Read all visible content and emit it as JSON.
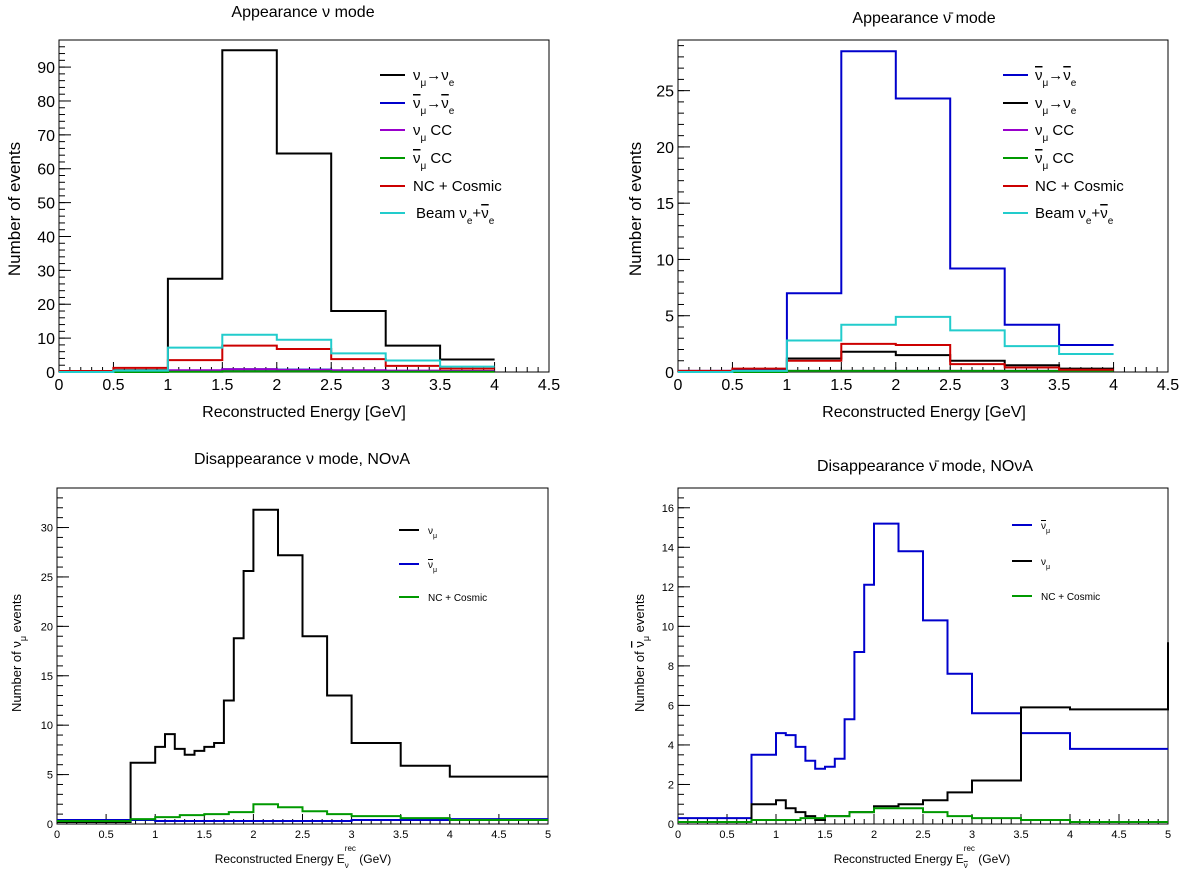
{
  "chart_data": [
    {
      "type": "line",
      "step": true,
      "title": "Appearance ν mode",
      "xlabel": "Reconstructed Energy [GeV]",
      "ylabel": "Number of events",
      "xlim": [
        0,
        4.5
      ],
      "ylim": [
        0,
        98
      ],
      "xticks": [
        0,
        0.5,
        1,
        1.5,
        2,
        2.5,
        3,
        3.5,
        4,
        4.5
      ],
      "yticks": [
        0,
        10,
        20,
        30,
        40,
        50,
        60,
        70,
        80,
        90
      ],
      "legend_position": "top-right",
      "series": [
        {
          "name": "νμ→νe",
          "color": "#000000",
          "edges": [
            0,
            0.5,
            1,
            1.5,
            2,
            2.5,
            3,
            3.5,
            4
          ],
          "values": [
            0.3,
            0.5,
            27.5,
            95,
            64.5,
            18,
            7.8,
            3.7
          ]
        },
        {
          "name": "ν̄μ→ν̄e",
          "color": "#0000cc",
          "edges": [
            0,
            0.5,
            1,
            1.5,
            2,
            2.5,
            3,
            3.5,
            4
          ],
          "values": [
            0,
            0.1,
            0.4,
            0.8,
            0.7,
            0.4,
            0.3,
            0.2
          ]
        },
        {
          "name": "νμ CC",
          "color": "#9900cc",
          "edges": [
            0,
            0.5,
            1,
            1.5,
            2,
            2.5,
            3,
            3.5,
            4
          ],
          "values": [
            0,
            0.1,
            0.5,
            0.8,
            0.6,
            0.5,
            0.4,
            0.3
          ]
        },
        {
          "name": "ν̄μ CC",
          "color": "#009900",
          "edges": [
            0,
            0.5,
            1,
            1.5,
            2,
            2.5,
            3,
            3.5,
            4
          ],
          "values": [
            0,
            0,
            0.1,
            0.2,
            0.2,
            0.1,
            0.1,
            0.1
          ]
        },
        {
          "name": "NC + Cosmic",
          "color": "#cc0000",
          "edges": [
            0,
            0.5,
            1,
            1.5,
            2,
            2.5,
            3,
            3.5,
            4
          ],
          "values": [
            0.3,
            1.2,
            3.5,
            7.8,
            6.8,
            3.8,
            1.8,
            1.0
          ]
        },
        {
          "name": "Beam νe+ν̄e",
          "color": "#22cccc",
          "edges": [
            0,
            0.5,
            1,
            1.5,
            2,
            2.5,
            3,
            3.5,
            4
          ],
          "values": [
            0,
            0.4,
            7.2,
            11,
            9.5,
            5.5,
            3.4,
            1.6
          ]
        }
      ]
    },
    {
      "type": "line",
      "step": true,
      "title": "Appearance ν̄ mode",
      "xlabel": "Reconstructed Energy [GeV]",
      "ylabel": "Number of events",
      "xlim": [
        0,
        4.5
      ],
      "ylim": [
        0,
        29.5
      ],
      "xticks": [
        0,
        0.5,
        1,
        1.5,
        2,
        2.5,
        3,
        3.5,
        4,
        4.5
      ],
      "yticks": [
        0,
        5,
        10,
        15,
        20,
        25
      ],
      "legend_position": "top-right",
      "series": [
        {
          "name": "ν̄μ→ν̄e",
          "color": "#0000cc",
          "edges": [
            0,
            0.5,
            1,
            1.5,
            2,
            2.5,
            3,
            3.5,
            4
          ],
          "values": [
            0.1,
            0.2,
            7.0,
            28.5,
            24.3,
            9.2,
            4.2,
            2.4
          ]
        },
        {
          "name": "νμ→νe",
          "color": "#000000",
          "edges": [
            0,
            0.5,
            1,
            1.5,
            2,
            2.5,
            3,
            3.5,
            4
          ],
          "values": [
            0,
            0.1,
            1.2,
            1.8,
            1.5,
            1.0,
            0.6,
            0.3
          ]
        },
        {
          "name": "νμ CC",
          "color": "#9900cc",
          "edges": [
            0,
            0.5,
            1,
            1.5,
            2,
            2.5,
            3,
            3.5,
            4
          ],
          "values": [
            0,
            0,
            0.1,
            0.1,
            0.1,
            0.1,
            0.1,
            0.1
          ]
        },
        {
          "name": "ν̄μ CC",
          "color": "#009900",
          "edges": [
            0,
            0.5,
            1,
            1.5,
            2,
            2.5,
            3,
            3.5,
            4
          ],
          "values": [
            0,
            0,
            0.1,
            0.1,
            0.1,
            0.1,
            0.1,
            0.1
          ]
        },
        {
          "name": "NC + Cosmic",
          "color": "#cc0000",
          "edges": [
            0,
            0.5,
            1,
            1.5,
            2,
            2.5,
            3,
            3.5,
            4
          ],
          "values": [
            0.1,
            0.3,
            1.0,
            2.5,
            2.4,
            0.7,
            0.4,
            0.2
          ]
        },
        {
          "name": "Beam νe+ν̄e",
          "color": "#22cccc",
          "edges": [
            0,
            0.5,
            1,
            1.5,
            2,
            2.5,
            3,
            3.5,
            4
          ],
          "values": [
            0,
            0.1,
            2.8,
            4.2,
            4.9,
            3.7,
            2.3,
            1.6
          ]
        }
      ]
    },
    {
      "type": "line",
      "step": true,
      "title": "Disappearance ν mode, NOνA",
      "xlabel": "Reconstructed Energy Eνrec (GeV)",
      "ylabel": "Number of νμ events",
      "xlim": [
        0,
        5
      ],
      "ylim": [
        0,
        34
      ],
      "xticks": [
        0,
        0.5,
        1,
        1.5,
        2,
        2.5,
        3,
        3.5,
        4,
        4.5,
        5
      ],
      "yticks": [
        0,
        5,
        10,
        15,
        20,
        25,
        30
      ],
      "legend_position": "top-right",
      "series": [
        {
          "name": "νμ",
          "color": "#000000",
          "edges": [
            0,
            0.75,
            1.0,
            1.1,
            1.2,
            1.3,
            1.4,
            1.5,
            1.6,
            1.7,
            1.8,
            1.9,
            2.0,
            2.25,
            2.5,
            2.75,
            3.0,
            3.5,
            4.0,
            5.0
          ],
          "values": [
            0.2,
            6.2,
            7.8,
            9.1,
            7.6,
            7.0,
            7.4,
            7.8,
            8.2,
            12.5,
            18.8,
            25.6,
            31.8,
            27.2,
            19.0,
            13.0,
            8.2,
            5.9,
            4.8
          ]
        },
        {
          "name": "ν̄μ",
          "color": "#0000cc",
          "edges": [
            0,
            0.75,
            1.0,
            1.5,
            2.0,
            2.5,
            3.0,
            3.5,
            4.0,
            5.0
          ],
          "values": [
            0.4,
            0.4,
            0.3,
            0.3,
            0.3,
            0.3,
            0.4,
            0.4,
            0.5
          ]
        },
        {
          "name": "NC + Cosmic",
          "color": "#009900",
          "edges": [
            0,
            0.75,
            1.0,
            1.25,
            1.5,
            1.75,
            2.0,
            2.25,
            2.5,
            2.75,
            3.0,
            3.5,
            4.0,
            5.0
          ],
          "values": [
            0.3,
            0.5,
            0.7,
            0.9,
            1.0,
            1.2,
            2.0,
            1.7,
            1.3,
            1.0,
            0.8,
            0.6,
            0.4
          ]
        }
      ]
    },
    {
      "type": "line",
      "step": true,
      "title": "Disappearance ν̄ mode, NOνA",
      "xlabel": "Reconstructed Energy Eν̄rec (GeV)",
      "ylabel": "Number of ν̄μ events",
      "xlim": [
        0,
        5
      ],
      "ylim": [
        0,
        17
      ],
      "xticks": [
        0,
        0.5,
        1,
        1.5,
        2,
        2.5,
        3,
        3.5,
        4,
        4.5,
        5
      ],
      "yticks": [
        0,
        2,
        4,
        6,
        8,
        10,
        12,
        14,
        16
      ],
      "legend_position": "top-right",
      "series": [
        {
          "name": "ν̄μ",
          "color": "#0000cc",
          "edges": [
            0,
            0.75,
            1.0,
            1.1,
            1.2,
            1.3,
            1.4,
            1.5,
            1.6,
            1.7,
            1.8,
            1.9,
            2.0,
            2.25,
            2.5,
            2.75,
            3.0,
            3.5,
            4.0,
            5.0
          ],
          "values": [
            0.3,
            3.5,
            4.6,
            4.5,
            3.9,
            3.2,
            2.8,
            2.9,
            3.3,
            5.3,
            8.7,
            12.1,
            15.2,
            13.8,
            10.3,
            7.6,
            5.6,
            4.6,
            3.8
          ]
        },
        {
          "name": "νμ",
          "color": "#000000",
          "edges": [
            0,
            0.75,
            1.0,
            1.1,
            1.2,
            1.3,
            1.4,
            1.5,
            1.75,
            2.0,
            2.25,
            2.5,
            2.75,
            3.0,
            3.5,
            4.0,
            5.0
          ],
          "values": [
            0.1,
            1.0,
            1.2,
            0.8,
            0.6,
            0.4,
            0.2,
            0.4,
            0.6,
            0.9,
            1.0,
            1.2,
            1.6,
            2.2,
            5.9,
            5.8,
            9.2
          ]
        },
        {
          "name": "NC + Cosmic",
          "color": "#009900",
          "edges": [
            0,
            0.75,
            1.0,
            1.25,
            1.5,
            1.75,
            2.0,
            2.25,
            2.5,
            2.75,
            3.0,
            3.5,
            4.0,
            5.0
          ],
          "values": [
            0.1,
            0.2,
            0.2,
            0.3,
            0.4,
            0.6,
            0.8,
            0.8,
            0.6,
            0.4,
            0.3,
            0.2,
            0.1
          ]
        }
      ]
    }
  ]
}
